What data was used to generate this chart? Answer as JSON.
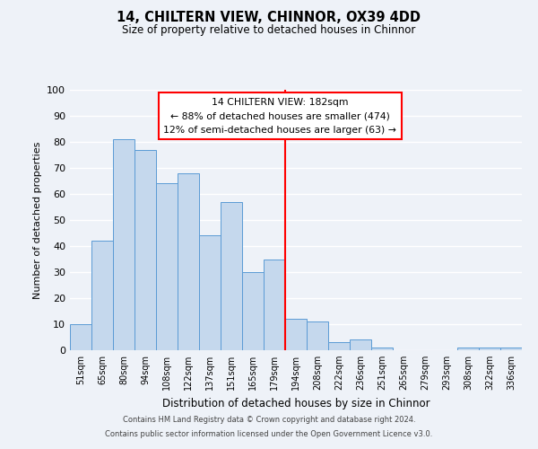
{
  "title": "14, CHILTERN VIEW, CHINNOR, OX39 4DD",
  "subtitle": "Size of property relative to detached houses in Chinnor",
  "xlabel": "Distribution of detached houses by size in Chinnor",
  "ylabel": "Number of detached properties",
  "bar_labels": [
    "51sqm",
    "65sqm",
    "80sqm",
    "94sqm",
    "108sqm",
    "122sqm",
    "137sqm",
    "151sqm",
    "165sqm",
    "179sqm",
    "194sqm",
    "208sqm",
    "222sqm",
    "236sqm",
    "251sqm",
    "265sqm",
    "279sqm",
    "293sqm",
    "308sqm",
    "322sqm",
    "336sqm"
  ],
  "bar_values": [
    10,
    42,
    81,
    77,
    64,
    68,
    44,
    57,
    30,
    35,
    12,
    11,
    3,
    4,
    1,
    0,
    0,
    0,
    1,
    1,
    1
  ],
  "bar_color": "#c5d8ed",
  "bar_edge_color": "#5b9bd5",
  "vline_x": 9.5,
  "vline_color": "red",
  "ylim": [
    0,
    100
  ],
  "yticks": [
    0,
    10,
    20,
    30,
    40,
    50,
    60,
    70,
    80,
    90,
    100
  ],
  "annotation_title": "14 CHILTERN VIEW: 182sqm",
  "annotation_line1": "← 88% of detached houses are smaller (474)",
  "annotation_line2": "12% of semi-detached houses are larger (63) →",
  "annotation_box_color": "white",
  "annotation_box_edge_color": "red",
  "bg_color": "#eef2f8",
  "grid_color": "white",
  "footer1": "Contains HM Land Registry data © Crown copyright and database right 2024.",
  "footer2": "Contains public sector information licensed under the Open Government Licence v3.0."
}
